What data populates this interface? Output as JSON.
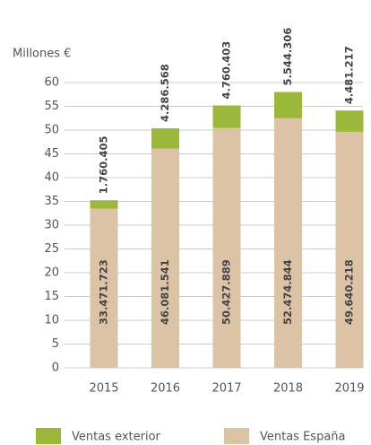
{
  "chart_data": {
    "type": "stacked_bar",
    "y_label": "Millones €",
    "categories": [
      "2015",
      "2016",
      "2017",
      "2018",
      "2019"
    ],
    "series": [
      {
        "name": "Ventas España",
        "color": "#dcc3a5",
        "values": [
          33.471723,
          46.081541,
          50.427889,
          52.474844,
          49.640218
        ],
        "value_labels": [
          "33.471.723",
          "46.081.541",
          "50.427.889",
          "52.474.844",
          "49.640.218"
        ]
      },
      {
        "name": "Ventas exterior",
        "color": "#9cb83a",
        "values": [
          1.760405,
          4.286568,
          4.760403,
          5.544306,
          4.481217
        ],
        "value_labels": [
          "1.760.405",
          "4.286.568",
          "4.760.403",
          "5.544.306",
          "4.481.217"
        ]
      }
    ],
    "ylim": [
      0,
      60
    ],
    "yticks": [
      0,
      5,
      10,
      15,
      20,
      25,
      30,
      35,
      40,
      45,
      50,
      55,
      60
    ],
    "grid": true
  }
}
